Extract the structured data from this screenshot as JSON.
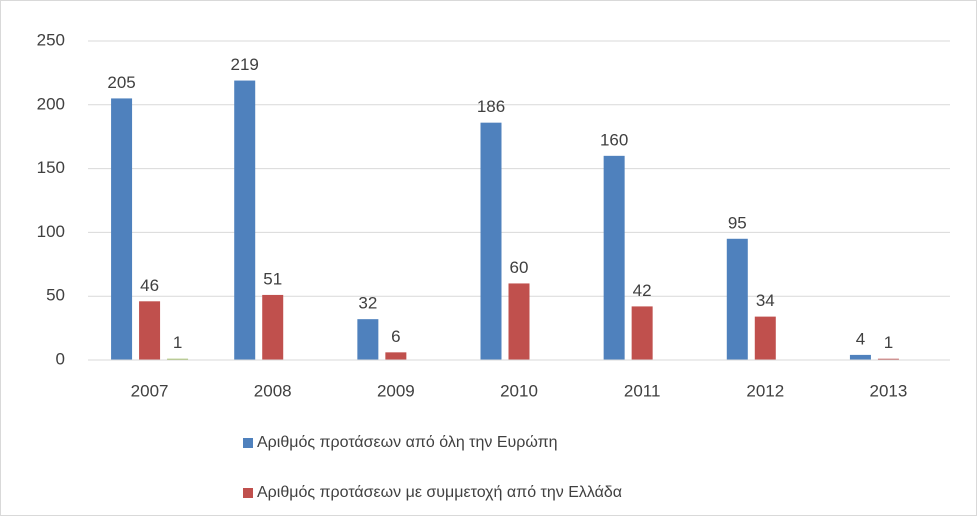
{
  "chart_data": {
    "type": "bar",
    "categories": [
      "2007",
      "2008",
      "2009",
      "2010",
      "2011",
      "2012",
      "2013"
    ],
    "series": [
      {
        "name": "Αριθμός προτάσεων από όλη την Ευρώπη",
        "color": "#4f81bd",
        "values": [
          205,
          219,
          32,
          186,
          160,
          95,
          4
        ]
      },
      {
        "name": "Αριθμός προτάσεων με συμμετοχή από την Ελλάδα",
        "color": "#c0504d",
        "values": [
          46,
          51,
          6,
          60,
          42,
          34,
          1
        ]
      },
      {
        "color": "#9bbb59",
        "values": [
          1,
          null,
          null,
          null,
          null,
          null,
          null
        ]
      }
    ],
    "ylim": [
      0,
      250
    ],
    "yticks": [
      0,
      50,
      100,
      150,
      200,
      250
    ],
    "grid": true,
    "legend": "bottom"
  }
}
